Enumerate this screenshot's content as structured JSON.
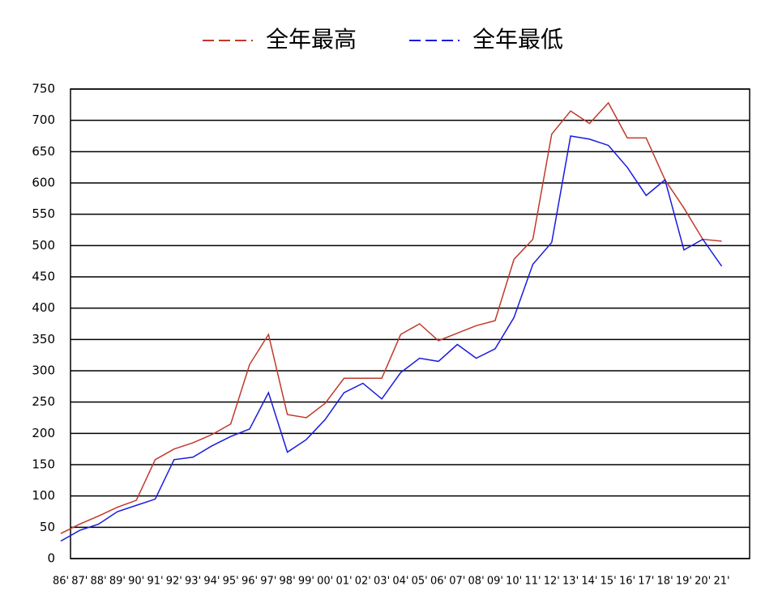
{
  "chart_data": {
    "type": "line",
    "categories": [
      "86'",
      "87'",
      "88'",
      "89'",
      "90'",
      "91'",
      "92'",
      "93'",
      "94'",
      "95'",
      "96'",
      "97'",
      "98'",
      "99'",
      "00'",
      "01'",
      "02'",
      "03'",
      "04'",
      "05'",
      "06'",
      "07'",
      "08'",
      "09'",
      "10'",
      "11'",
      "12'",
      "13'",
      "14'",
      "15'",
      "16'",
      "17'",
      "18'",
      "19'",
      "20'",
      "21'"
    ],
    "series": [
      {
        "name": "全年最高",
        "color": "#c0392b",
        "values": [
          40,
          55,
          68,
          82,
          93,
          158,
          175,
          185,
          198,
          215,
          310,
          358,
          230,
          225,
          248,
          288,
          288,
          288,
          358,
          375,
          348,
          360,
          372,
          380,
          478,
          510,
          678,
          715,
          695,
          728,
          672,
          672,
          605,
          560,
          510,
          507
        ]
      },
      {
        "name": "全年最低",
        "color": "#1a1adf",
        "values": [
          28,
          45,
          55,
          75,
          85,
          95,
          158,
          162,
          180,
          195,
          207,
          265,
          170,
          190,
          222,
          265,
          280,
          255,
          297,
          320,
          315,
          342,
          320,
          335,
          385,
          470,
          505,
          675,
          670,
          660,
          625,
          580,
          605,
          493,
          510,
          467
        ]
      }
    ],
    "ylim": [
      0,
      750
    ],
    "yticks": [
      0,
      50,
      100,
      150,
      200,
      250,
      300,
      350,
      400,
      450,
      500,
      550,
      600,
      650,
      700,
      750
    ],
    "grid": true
  }
}
